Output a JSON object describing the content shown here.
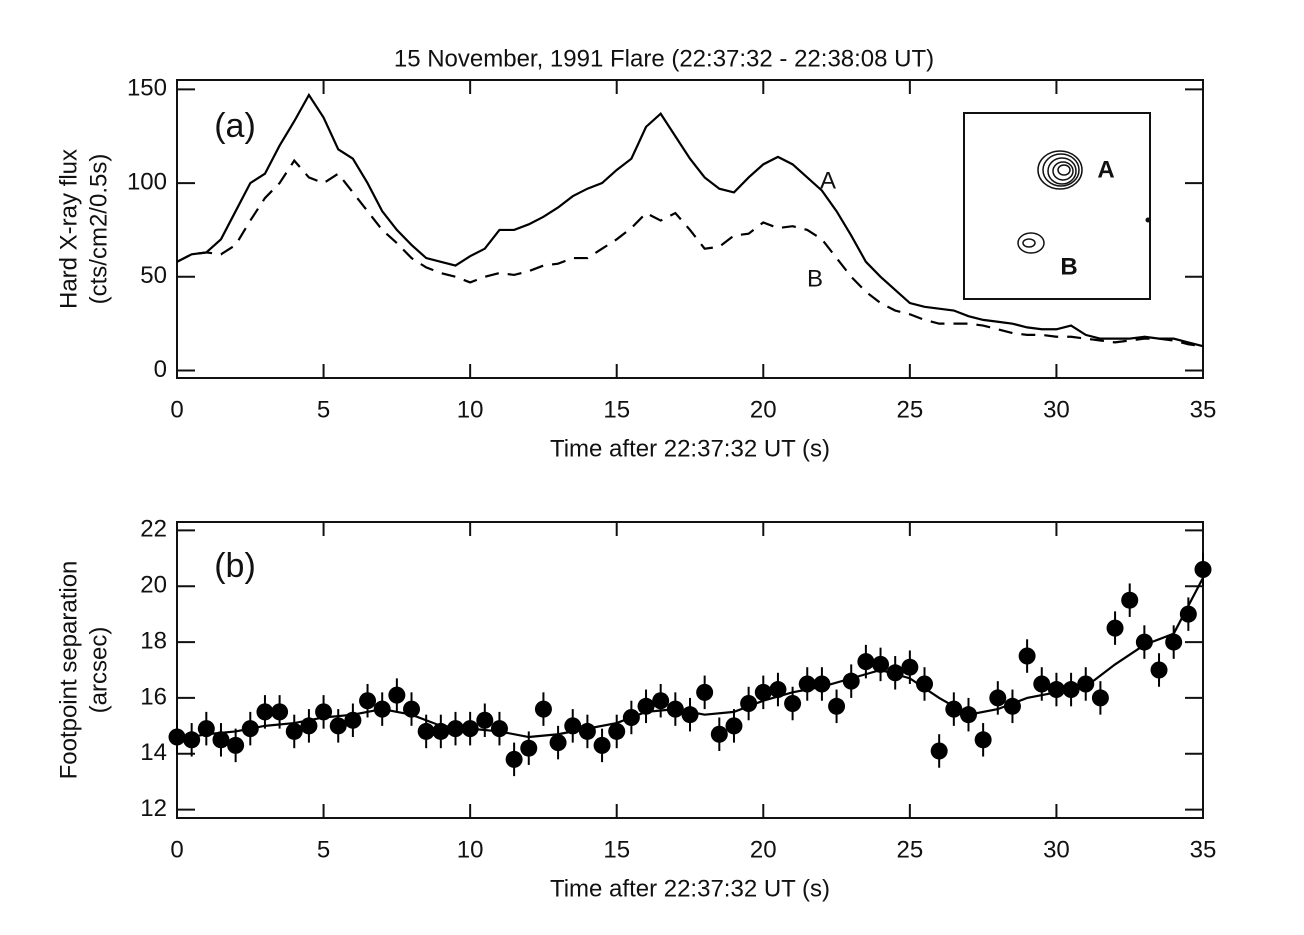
{
  "chart_data": [
    {
      "type": "line",
      "title": "15 November, 1991 Flare (22:37:32 - 22:38:08 UT)",
      "xlabel": "Time after 22:37:32 UT (s)",
      "ylabel": [
        "Hard X-ray flux",
        "(cts/cm2/0.5s)"
      ],
      "annotations": [
        "(a)",
        "A",
        "B"
      ],
      "inset_labels": [
        "A",
        "B"
      ],
      "xlim": [
        0,
        35
      ],
      "xticks": [
        0,
        5,
        10,
        15,
        20,
        25,
        30,
        35
      ],
      "ylim": [
        -4,
        155
      ],
      "yticks": [
        0,
        50,
        100,
        150
      ],
      "x": [
        0,
        0.5,
        1,
        1.5,
        2,
        2.5,
        3,
        3.5,
        4,
        4.5,
        5,
        5.5,
        6,
        6.5,
        7,
        7.5,
        8,
        8.5,
        9,
        9.5,
        10,
        10.5,
        11,
        11.5,
        12,
        12.5,
        13,
        13.5,
        14,
        14.5,
        15,
        15.5,
        16,
        16.5,
        17,
        17.5,
        18,
        18.5,
        19,
        19.5,
        20,
        20.5,
        21,
        21.5,
        22,
        22.5,
        23,
        23.5,
        24,
        24.5,
        25,
        25.5,
        26,
        26.5,
        27,
        27.5,
        28,
        28.5,
        29,
        29.5,
        30,
        30.5,
        31,
        31.5,
        32,
        32.5,
        33,
        33.5,
        34,
        34.5,
        35
      ],
      "series": [
        {
          "name": "A",
          "color": "#000000",
          "dash": false,
          "values": [
            58,
            62,
            63,
            70,
            85,
            100,
            105,
            120,
            133,
            147,
            135,
            118,
            113,
            100,
            85,
            75,
            67,
            60,
            58,
            56,
            61,
            65,
            75,
            75,
            78,
            82,
            87,
            93,
            97,
            100,
            107,
            113,
            130,
            137,
            125,
            113,
            103,
            97,
            95,
            103,
            110,
            114,
            110,
            103,
            96,
            85,
            72,
            58,
            50,
            43,
            36,
            34,
            33,
            32,
            29,
            27,
            26,
            25,
            23,
            22,
            22,
            24,
            19,
            17,
            17,
            17,
            18,
            17,
            17,
            15,
            13
          ]
        },
        {
          "name": "B",
          "color": "#000000",
          "dash": true,
          "values": [
            58,
            62,
            63,
            62,
            67,
            80,
            92,
            100,
            112,
            103,
            100,
            105,
            95,
            85,
            75,
            68,
            60,
            55,
            52,
            50,
            47,
            50,
            52,
            51,
            53,
            56,
            57,
            60,
            60,
            65,
            70,
            76,
            84,
            80,
            84,
            75,
            65,
            66,
            72,
            73,
            79,
            76,
            77,
            75,
            70,
            60,
            50,
            42,
            36,
            32,
            30,
            27,
            25,
            25,
            25,
            24,
            22,
            20,
            19,
            19,
            18,
            18,
            17,
            16,
            15,
            16,
            17,
            17,
            16,
            14,
            13
          ]
        }
      ]
    },
    {
      "type": "scatter",
      "xlabel": "Time after 22:37:32 UT (s)",
      "ylabel": [
        "Footpoint separation",
        "(arcsec)"
      ],
      "annotations": [
        "(b)"
      ],
      "xlim": [
        0,
        35
      ],
      "xticks": [
        0,
        5,
        10,
        15,
        20,
        25,
        30,
        35
      ],
      "ylim": [
        11.7,
        22.3
      ],
      "yticks": [
        12,
        14,
        16,
        18,
        20,
        22
      ],
      "yerr": 0.6,
      "x": [
        0,
        0.5,
        1,
        1.5,
        2,
        2.5,
        3,
        3.5,
        4,
        4.5,
        5,
        5.5,
        6,
        6.5,
        7,
        7.5,
        8,
        8.5,
        9,
        9.5,
        10,
        10.5,
        11,
        11.5,
        12,
        12.5,
        13,
        13.5,
        14,
        14.5,
        15,
        15.5,
        16,
        16.5,
        17,
        17.5,
        18,
        18.5,
        19,
        19.5,
        20,
        20.5,
        21,
        21.5,
        22,
        22.5,
        23,
        23.5,
        24,
        24.5,
        25,
        25.5,
        26,
        26.5,
        27,
        27.5,
        28,
        28.5,
        29,
        29.5,
        30,
        30.5,
        31,
        31.5,
        32,
        32.5,
        33,
        33.5,
        34,
        34.5,
        35
      ],
      "series": [
        {
          "color": "#000000",
          "values": [
            14.6,
            14.5,
            14.9,
            14.5,
            14.3,
            14.9,
            15.5,
            15.5,
            14.8,
            15.0,
            15.5,
            15.0,
            15.2,
            15.9,
            15.6,
            16.1,
            15.6,
            14.8,
            14.8,
            14.9,
            14.9,
            15.2,
            14.9,
            13.8,
            14.2,
            15.6,
            14.4,
            15.0,
            14.8,
            14.3,
            14.8,
            15.3,
            15.7,
            15.9,
            15.6,
            15.4,
            16.2,
            14.7,
            15.0,
            15.8,
            16.2,
            16.3,
            15.8,
            16.5,
            16.5,
            15.7,
            16.6,
            17.3,
            17.2,
            16.9,
            17.1,
            16.5,
            14.1,
            15.6,
            15.4,
            14.5,
            16.0,
            15.7,
            17.5,
            16.5,
            16.3,
            16.3,
            16.5,
            16.0,
            18.5,
            19.5,
            18.0,
            17.0,
            18.0,
            19.0,
            20.6
          ]
        },
        {
          "type": "line",
          "color": "#000000",
          "x": [
            0,
            1,
            2,
            3,
            4,
            5,
            6,
            7,
            8,
            9,
            10,
            11,
            12,
            13,
            14,
            15,
            16,
            17,
            18,
            19,
            20,
            21,
            22,
            23,
            24,
            25,
            26,
            27,
            28,
            29,
            30,
            31,
            32,
            33,
            34,
            35
          ],
          "values": [
            14.5,
            14.7,
            14.8,
            15.0,
            15.1,
            15.3,
            15.4,
            15.6,
            15.4,
            15.0,
            14.9,
            14.8,
            14.6,
            14.7,
            14.9,
            15.1,
            15.5,
            15.6,
            15.4,
            15.5,
            15.9,
            16.2,
            16.4,
            16.7,
            17.0,
            16.7,
            16.0,
            15.4,
            15.6,
            16.0,
            16.2,
            16.4,
            17.2,
            17.9,
            18.3,
            20.3
          ]
        }
      ]
    }
  ]
}
